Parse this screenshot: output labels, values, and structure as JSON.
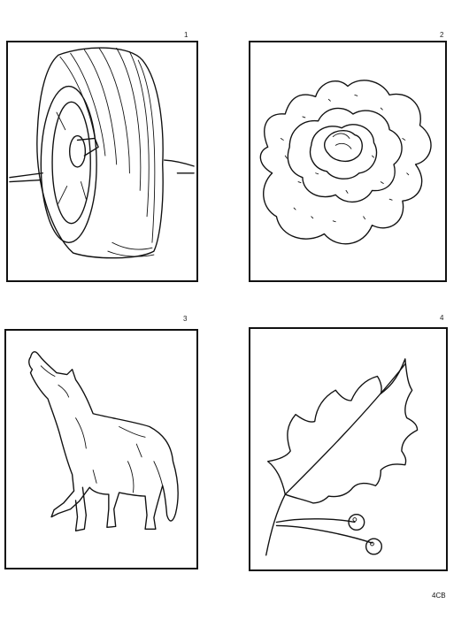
{
  "panels": [
    {
      "number": "1",
      "subject-icon": "tire-icon"
    },
    {
      "number": "2",
      "subject-icon": "rose-icon"
    },
    {
      "number": "3",
      "subject-icon": "wolf-icon"
    },
    {
      "number": "4",
      "subject-icon": "holly-leaf-icon"
    }
  ],
  "footer": {
    "code": "4CB"
  }
}
